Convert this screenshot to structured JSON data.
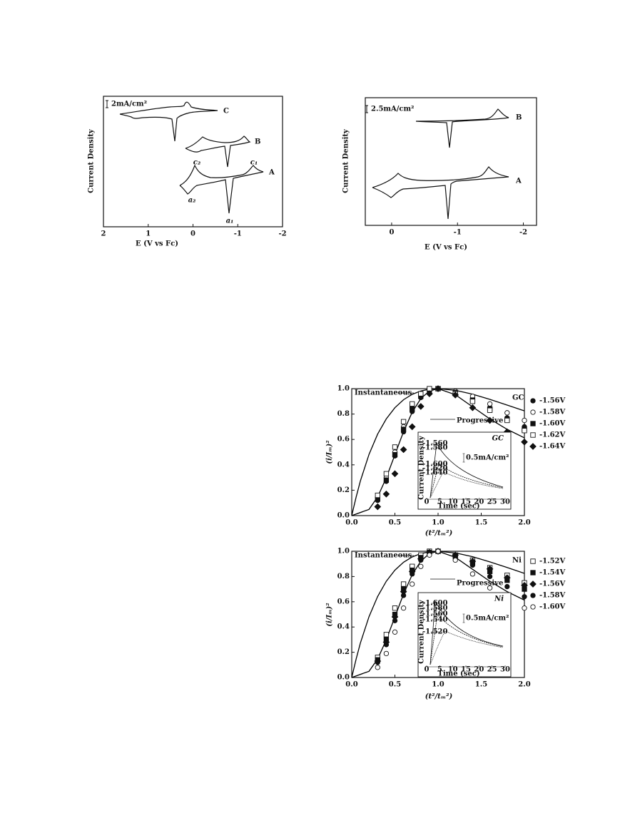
{
  "chart_data": [
    {
      "type": "cv",
      "ylabel": "Current Density",
      "xlabel": "E (V vs Fc)",
      "xlim": [
        2,
        -2
      ],
      "xticks": [
        2,
        1,
        0,
        -1,
        -2
      ],
      "scale_bar": "2mA/cm²",
      "curve_labels": [
        "C",
        "B",
        "A"
      ],
      "peak_labels": [
        "c₂",
        "c₁",
        "a₂",
        "a₁"
      ]
    },
    {
      "type": "cv",
      "ylabel": "Current Density",
      "xlabel": "E (V vs Fc)",
      "xlim": [
        0.4,
        -2.2
      ],
      "xticks": [
        0,
        -1,
        -2
      ],
      "scale_bar": "2.5mA/cm²",
      "curve_labels": [
        "B",
        "A"
      ],
      "peak_labels": []
    },
    {
      "type": "scatter",
      "label": "GC",
      "ylabel": "(i/Iₘ)²",
      "xlabel": "(t²/tₘ²)",
      "xlim": [
        0,
        2
      ],
      "ylim": [
        0,
        1
      ],
      "xticks": [
        {
          "value": 0,
          "label": "0.0"
        },
        0.5,
        {
          "value": 1,
          "label": "1.0"
        },
        1.5,
        {
          "value": 2,
          "label": "2.0"
        }
      ],
      "yticks": [
        {
          "value": 0,
          "label": "0.0"
        },
        0.2,
        0.4,
        0.6,
        0.8,
        {
          "value": 1,
          "label": "1.0"
        }
      ],
      "x": [
        0.3,
        0.4,
        0.5,
        0.6,
        0.7,
        0.8,
        0.9,
        1.0,
        1.2,
        1.4,
        1.6,
        1.8,
        2.0
      ],
      "series": [
        {
          "name": "Instantaneous",
          "marker": "line",
          "color": "#000000",
          "x": [
            0,
            0.05,
            0.1,
            0.2,
            0.3,
            0.4,
            0.5,
            0.6,
            0.7,
            0.8,
            0.9,
            1.0,
            1.2,
            1.4,
            1.6,
            1.8,
            2.0
          ],
          "values": [
            0,
            0.145,
            0.273,
            0.482,
            0.642,
            0.762,
            0.85,
            0.913,
            0.955,
            0.982,
            0.996,
            1.0,
            0.987,
            0.957,
            0.916,
            0.871,
            0.825
          ]
        },
        {
          "name": "Progressive",
          "marker": "line",
          "color": "#000000",
          "x": [
            0,
            0.2,
            0.3,
            0.4,
            0.5,
            0.6,
            0.7,
            0.8,
            0.9,
            1.0,
            1.2,
            1.4,
            1.6,
            1.8,
            2.0
          ],
          "values": [
            0,
            0.049,
            0.147,
            0.298,
            0.48,
            0.661,
            0.814,
            0.922,
            0.982,
            1.0,
            0.952,
            0.857,
            0.762,
            0.68,
            0.613
          ]
        },
        {
          "name": "-1.56V",
          "marker": "circle-filled",
          "color": "#000000",
          "values": [
            0.12,
            0.27,
            0.47,
            0.66,
            0.82,
            0.93,
            0.99,
            1.0,
            0.97,
            0.92,
            0.85,
            0.77,
            0.7
          ]
        },
        {
          "name": "-1.58V",
          "marker": "circle-open",
          "color": "#000000",
          "values": [
            0.14,
            0.3,
            0.5,
            0.7,
            0.85,
            0.95,
            0.99,
            1.0,
            0.98,
            0.94,
            0.88,
            0.81,
            0.75
          ]
        },
        {
          "name": "-1.60V",
          "marker": "square-filled",
          "color": "#000000",
          "values": [
            0.13,
            0.28,
            0.48,
            0.68,
            0.84,
            0.94,
            0.99,
            1.0,
            0.97,
            0.91,
            0.84,
            0.76,
            0.68
          ]
        },
        {
          "name": "-1.62V",
          "marker": "square-open",
          "color": "#000000",
          "values": [
            0.16,
            0.33,
            0.54,
            0.74,
            0.88,
            0.96,
            1.0,
            1.0,
            0.96,
            0.9,
            0.83,
            0.75,
            0.67
          ]
        },
        {
          "name": "-1.64V",
          "marker": "diamond-filled",
          "color": "#000000",
          "values": [
            0.07,
            0.17,
            0.33,
            0.52,
            0.7,
            0.86,
            0.96,
            1.0,
            0.95,
            0.85,
            0.75,
            0.66,
            0.58
          ]
        }
      ],
      "inset": {
        "title": "GC",
        "ylabel": "Current Density",
        "xlabel": "Time (sec)",
        "scale_bar": "0.5mA/cm²",
        "xlim": [
          0,
          30
        ],
        "xticks": [
          0,
          5,
          10,
          15,
          20,
          25,
          30
        ],
        "labels": [
          "-1.560",
          "-1.580",
          "-1.600",
          "-1.620",
          "-1.640"
        ]
      }
    },
    {
      "type": "scatter",
      "label": "Ni",
      "ylabel": "(i/Iₘ)²",
      "xlabel": "(t²/tₘ²)",
      "xlim": [
        0,
        2
      ],
      "ylim": [
        0,
        1
      ],
      "xticks": [
        {
          "value": 0,
          "label": "0.0"
        },
        0.5,
        {
          "value": 1,
          "label": "1.0"
        },
        1.5,
        {
          "value": 2,
          "label": "2.0"
        }
      ],
      "yticks": [
        {
          "value": 0,
          "label": "0.0"
        },
        0.2,
        0.4,
        0.6,
        0.8,
        {
          "value": 1,
          "label": "1.0"
        }
      ],
      "x": [
        0.3,
        0.4,
        0.5,
        0.6,
        0.7,
        0.8,
        0.9,
        1.0,
        1.2,
        1.4,
        1.6,
        1.8,
        2.0
      ],
      "series": [
        {
          "name": "Instantaneous",
          "marker": "line",
          "color": "#000000",
          "x": [
            0,
            0.05,
            0.1,
            0.2,
            0.3,
            0.4,
            0.5,
            0.6,
            0.7,
            0.8,
            0.9,
            1.0,
            1.2,
            1.4,
            1.6,
            1.8,
            2.0
          ],
          "values": [
            0,
            0.145,
            0.273,
            0.482,
            0.642,
            0.762,
            0.85,
            0.913,
            0.955,
            0.982,
            0.996,
            1.0,
            0.987,
            0.957,
            0.916,
            0.871,
            0.825
          ]
        },
        {
          "name": "Progressive",
          "marker": "line",
          "color": "#000000",
          "x": [
            0,
            0.2,
            0.3,
            0.4,
            0.5,
            0.6,
            0.7,
            0.8,
            0.9,
            1.0,
            1.2,
            1.4,
            1.6,
            1.8,
            2.0
          ],
          "values": [
            0,
            0.049,
            0.147,
            0.298,
            0.48,
            0.661,
            0.814,
            0.922,
            0.982,
            1.0,
            0.952,
            0.857,
            0.762,
            0.68,
            0.613
          ]
        },
        {
          "name": "-1.52V",
          "marker": "square-open",
          "color": "#000000",
          "values": [
            0.16,
            0.34,
            0.55,
            0.74,
            0.88,
            0.97,
            1.0,
            1.0,
            0.97,
            0.93,
            0.87,
            0.81,
            0.75
          ]
        },
        {
          "name": "-1.54V",
          "marker": "square-filled",
          "color": "#000000",
          "values": [
            0.14,
            0.3,
            0.5,
            0.7,
            0.85,
            0.95,
            0.99,
            1.0,
            0.96,
            0.91,
            0.84,
            0.77,
            0.7
          ]
        },
        {
          "name": "-1.56V",
          "marker": "diamond-filled",
          "color": "#000000",
          "values": [
            0.13,
            0.28,
            0.48,
            0.68,
            0.84,
            0.94,
            0.99,
            1.0,
            0.97,
            0.92,
            0.86,
            0.79,
            0.73
          ]
        },
        {
          "name": "-1.58V",
          "marker": "circle-filled",
          "color": "#000000",
          "values": [
            0.12,
            0.26,
            0.45,
            0.65,
            0.82,
            0.93,
            0.99,
            1.0,
            0.96,
            0.89,
            0.8,
            0.72,
            0.64
          ]
        },
        {
          "name": "-1.60V",
          "marker": "circle-open",
          "color": "#000000",
          "values": [
            0.08,
            0.19,
            0.36,
            0.55,
            0.74,
            0.88,
            0.97,
            1.0,
            0.93,
            0.82,
            0.71,
            0.62,
            0.55
          ]
        }
      ],
      "inset": {
        "title": "Ni",
        "ylabel": "Current Density",
        "xlabel": "Time (sec)",
        "scale_bar": "0.5mA/cm²",
        "xlim": [
          0,
          30
        ],
        "xticks": [
          0,
          5,
          10,
          15,
          20,
          25,
          30
        ],
        "labels": [
          "-1.600",
          "-1.580",
          "-1.560",
          "-1.540",
          "-1.520"
        ]
      }
    }
  ]
}
